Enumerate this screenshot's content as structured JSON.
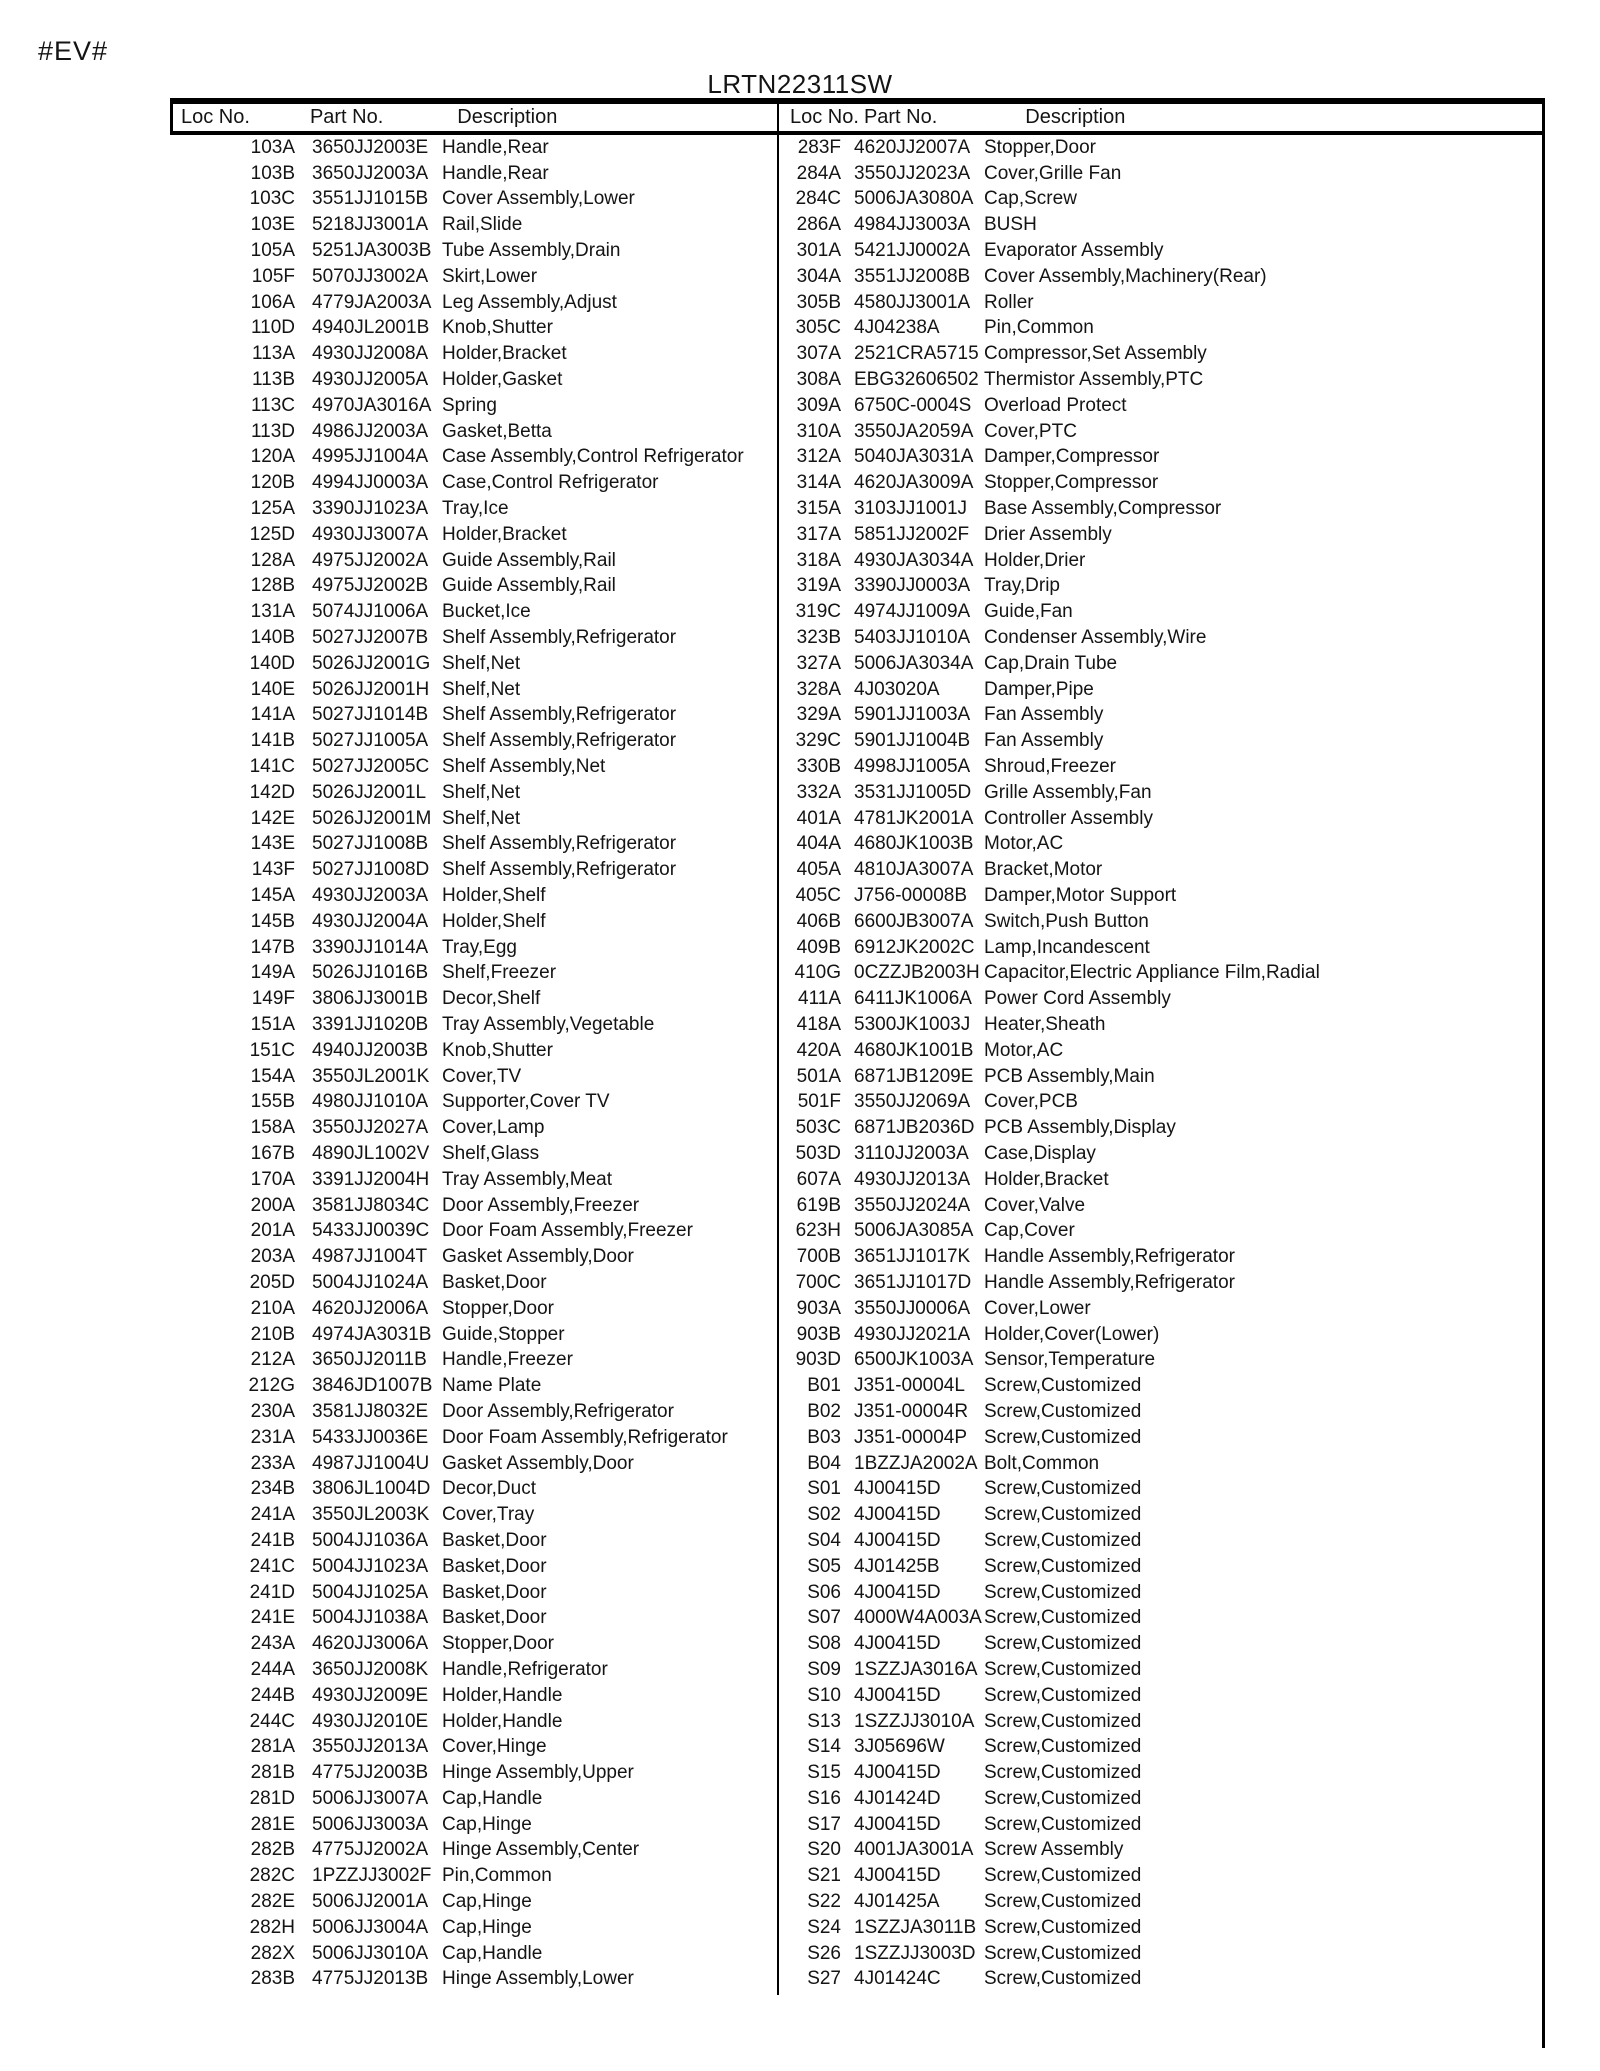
{
  "page": {
    "ev_marker": "#EV#",
    "title": "LRTN22311SW"
  },
  "table": {
    "headers": [
      "Loc No.",
      "Part No.",
      "Description"
    ],
    "left_rows": [
      [
        "103A",
        "3650JJ2003E",
        "Handle,Rear"
      ],
      [
        "103B",
        "3650JJ2003A",
        "Handle,Rear"
      ],
      [
        "103C",
        "3551JJ1015B",
        "Cover Assembly,Lower"
      ],
      [
        "103E",
        "5218JJ3001A",
        "Rail,Slide"
      ],
      [
        "105A",
        "5251JA3003B",
        "Tube Assembly,Drain"
      ],
      [
        "105F",
        "5070JJ3002A",
        "Skirt,Lower"
      ],
      [
        "106A",
        "4779JA2003A",
        "Leg Assembly,Adjust"
      ],
      [
        "110D",
        "4940JL2001B",
        "Knob,Shutter"
      ],
      [
        "113A",
        "4930JJ2008A",
        "Holder,Bracket"
      ],
      [
        "113B",
        "4930JJ2005A",
        "Holder,Gasket"
      ],
      [
        "113C",
        "4970JA3016A",
        "Spring"
      ],
      [
        "113D",
        "4986JJ2003A",
        "Gasket,Betta"
      ],
      [
        "120A",
        "4995JJ1004A",
        "Case Assembly,Control Refrigerator"
      ],
      [
        "120B",
        "4994JJ0003A",
        "Case,Control Refrigerator"
      ],
      [
        "125A",
        "3390JJ1023A",
        "Tray,Ice"
      ],
      [
        "125D",
        "4930JJ3007A",
        "Holder,Bracket"
      ],
      [
        "128A",
        "4975JJ2002A",
        "Guide Assembly,Rail"
      ],
      [
        "128B",
        "4975JJ2002B",
        "Guide Assembly,Rail"
      ],
      [
        "131A",
        "5074JJ1006A",
        "Bucket,Ice"
      ],
      [
        "140B",
        "5027JJ2007B",
        "Shelf Assembly,Refrigerator"
      ],
      [
        "140D",
        "5026JJ2001G",
        "Shelf,Net"
      ],
      [
        "140E",
        "5026JJ2001H",
        "Shelf,Net"
      ],
      [
        "141A",
        "5027JJ1014B",
        "Shelf Assembly,Refrigerator"
      ],
      [
        "141B",
        "5027JJ1005A",
        "Shelf Assembly,Refrigerator"
      ],
      [
        "141C",
        "5027JJ2005C",
        "Shelf Assembly,Net"
      ],
      [
        "142D",
        "5026JJ2001L",
        "Shelf,Net"
      ],
      [
        "142E",
        "5026JJ2001M",
        "Shelf,Net"
      ],
      [
        "143E",
        "5027JJ1008B",
        "Shelf Assembly,Refrigerator"
      ],
      [
        "143F",
        "5027JJ1008D",
        "Shelf Assembly,Refrigerator"
      ],
      [
        "145A",
        "4930JJ2003A",
        "Holder,Shelf"
      ],
      [
        "145B",
        "4930JJ2004A",
        "Holder,Shelf"
      ],
      [
        "147B",
        "3390JJ1014A",
        "Tray,Egg"
      ],
      [
        "149A",
        "5026JJ1016B",
        "Shelf,Freezer"
      ],
      [
        "149F",
        "3806JJ3001B",
        "Decor,Shelf"
      ],
      [
        "151A",
        "3391JJ1020B",
        "Tray Assembly,Vegetable"
      ],
      [
        "151C",
        "4940JJ2003B",
        "Knob,Shutter"
      ],
      [
        "154A",
        "3550JL2001K",
        "Cover,TV"
      ],
      [
        "155B",
        "4980JJ1010A",
        "Supporter,Cover TV"
      ],
      [
        "158A",
        "3550JJ2027A",
        "Cover,Lamp"
      ],
      [
        "167B",
        "4890JL1002V",
        "Shelf,Glass"
      ],
      [
        "170A",
        "3391JJ2004H",
        "Tray Assembly,Meat"
      ],
      [
        "200A",
        "3581JJ8034C",
        "Door Assembly,Freezer"
      ],
      [
        "201A",
        "5433JJ0039C",
        "Door Foam Assembly,Freezer"
      ],
      [
        "203A",
        "4987JJ1004T",
        "Gasket Assembly,Door"
      ],
      [
        "205D",
        "5004JJ1024A",
        "Basket,Door"
      ],
      [
        "210A",
        "4620JJ2006A",
        "Stopper,Door"
      ],
      [
        "210B",
        "4974JA3031B",
        "Guide,Stopper"
      ],
      [
        "212A",
        "3650JJ2011B",
        "Handle,Freezer"
      ],
      [
        "212G",
        "3846JD1007B",
        "Name Plate"
      ],
      [
        "230A",
        "3581JJ8032E",
        "Door Assembly,Refrigerator"
      ],
      [
        "231A",
        "5433JJ0036E",
        "Door Foam Assembly,Refrigerator"
      ],
      [
        "233A",
        "4987JJ1004U",
        "Gasket Assembly,Door"
      ],
      [
        "234B",
        "3806JL1004D",
        "Decor,Duct"
      ],
      [
        "241A",
        "3550JL2003K",
        "Cover,Tray"
      ],
      [
        "241B",
        "5004JJ1036A",
        "Basket,Door"
      ],
      [
        "241C",
        "5004JJ1023A",
        "Basket,Door"
      ],
      [
        "241D",
        "5004JJ1025A",
        "Basket,Door"
      ],
      [
        "241E",
        "5004JJ1038A",
        "Basket,Door"
      ],
      [
        "243A",
        "4620JJ3006A",
        "Stopper,Door"
      ],
      [
        "244A",
        "3650JJ2008K",
        "Handle,Refrigerator"
      ],
      [
        "244B",
        "4930JJ2009E",
        "Holder,Handle"
      ],
      [
        "244C",
        "4930JJ2010E",
        "Holder,Handle"
      ],
      [
        "281A",
        "3550JJ2013A",
        "Cover,Hinge"
      ],
      [
        "281B",
        "4775JJ2003B",
        "Hinge Assembly,Upper"
      ],
      [
        "281D",
        "5006JJ3007A",
        "Cap,Handle"
      ],
      [
        "281E",
        "5006JJ3003A",
        "Cap,Hinge"
      ],
      [
        "282B",
        "4775JJ2002A",
        "Hinge Assembly,Center"
      ],
      [
        "282C",
        "1PZZJJ3002F",
        "Pin,Common"
      ],
      [
        "282E",
        "5006JJ2001A",
        "Cap,Hinge"
      ],
      [
        "282H",
        "5006JJ3004A",
        "Cap,Hinge"
      ],
      [
        "282X",
        "5006JJ3010A",
        "Cap,Handle"
      ],
      [
        "283B",
        "4775JJ2013B",
        "Hinge Assembly,Lower"
      ]
    ],
    "right_rows": [
      [
        "283F",
        "4620JJ2007A",
        "Stopper,Door"
      ],
      [
        "284A",
        "3550JJ2023A",
        "Cover,Grille Fan"
      ],
      [
        "284C",
        "5006JA3080A",
        "Cap,Screw"
      ],
      [
        "286A",
        "4984JJ3003A",
        "BUSH"
      ],
      [
        "301A",
        "5421JJ0002A",
        "Evaporator Assembly"
      ],
      [
        "304A",
        "3551JJ2008B",
        "Cover Assembly,Machinery(Rear)"
      ],
      [
        "305B",
        "4580JJ3001A",
        "Roller"
      ],
      [
        "305C",
        "4J04238A",
        "Pin,Common"
      ],
      [
        "307A",
        "2521CRA5715",
        "Compressor,Set Assembly"
      ],
      [
        "308A",
        "EBG32606502",
        "Thermistor Assembly,PTC"
      ],
      [
        "309A",
        "6750C-0004S",
        "Overload Protect"
      ],
      [
        "310A",
        "3550JA2059A",
        "Cover,PTC"
      ],
      [
        "312A",
        "5040JA3031A",
        "Damper,Compressor"
      ],
      [
        "314A",
        "4620JA3009A",
        "Stopper,Compressor"
      ],
      [
        "315A",
        "3103JJ1001J",
        "Base Assembly,Compressor"
      ],
      [
        "317A",
        "5851JJ2002F",
        "Drier Assembly"
      ],
      [
        "318A",
        "4930JA3034A",
        "Holder,Drier"
      ],
      [
        "319A",
        "3390JJ0003A",
        "Tray,Drip"
      ],
      [
        "319C",
        "4974JJ1009A",
        "Guide,Fan"
      ],
      [
        "323B",
        "5403JJ1010A",
        "Condenser Assembly,Wire"
      ],
      [
        "327A",
        "5006JA3034A",
        "Cap,Drain Tube"
      ],
      [
        "328A",
        "4J03020A",
        "Damper,Pipe"
      ],
      [
        "329A",
        "5901JJ1003A",
        "Fan Assembly"
      ],
      [
        "329C",
        "5901JJ1004B",
        "Fan Assembly"
      ],
      [
        "330B",
        "4998JJ1005A",
        "Shroud,Freezer"
      ],
      [
        "332A",
        "3531JJ1005D",
        "Grille Assembly,Fan"
      ],
      [
        "401A",
        "4781JK2001A",
        "Controller Assembly"
      ],
      [
        "404A",
        "4680JK1003B",
        "Motor,AC"
      ],
      [
        "405A",
        "4810JA3007A",
        "Bracket,Motor"
      ],
      [
        "405C",
        "J756-00008B",
        "Damper,Motor Support"
      ],
      [
        "406B",
        "6600JB3007A",
        "Switch,Push Button"
      ],
      [
        "409B",
        "6912JK2002C",
        "Lamp,Incandescent"
      ],
      [
        "410G",
        "0CZZJB2003H",
        "Capacitor,Electric Appliance Film,Radial"
      ],
      [
        "411A",
        "6411JK1006A",
        "Power Cord Assembly"
      ],
      [
        "418A",
        "5300JK1003J",
        "Heater,Sheath"
      ],
      [
        "420A",
        "4680JK1001B",
        "Motor,AC"
      ],
      [
        "501A",
        "6871JB1209E",
        "PCB Assembly,Main"
      ],
      [
        "501F",
        "3550JJ2069A",
        "Cover,PCB"
      ],
      [
        "503C",
        "6871JB2036D",
        "PCB Assembly,Display"
      ],
      [
        "503D",
        "3110JJ2003A",
        "Case,Display"
      ],
      [
        "607A",
        "4930JJ2013A",
        "Holder,Bracket"
      ],
      [
        "619B",
        "3550JJ2024A",
        "Cover,Valve"
      ],
      [
        "623H",
        "5006JA3085A",
        "Cap,Cover"
      ],
      [
        "700B",
        "3651JJ1017K",
        "Handle Assembly,Refrigerator"
      ],
      [
        "700C",
        "3651JJ1017D",
        "Handle Assembly,Refrigerator"
      ],
      [
        "903A",
        "3550JJ0006A",
        "Cover,Lower"
      ],
      [
        "903B",
        "4930JJ2021A",
        "Holder,Cover(Lower)"
      ],
      [
        "903D",
        "6500JK1003A",
        "Sensor,Temperature"
      ],
      [
        "B01",
        "J351-00004L",
        "Screw,Customized"
      ],
      [
        "B02",
        "J351-00004R",
        "Screw,Customized"
      ],
      [
        "B03",
        "J351-00004P",
        "Screw,Customized"
      ],
      [
        "B04",
        "1BZZJA2002A",
        "Bolt,Common"
      ],
      [
        "S01",
        "4J00415D",
        "Screw,Customized"
      ],
      [
        "S02",
        "4J00415D",
        "Screw,Customized"
      ],
      [
        "S04",
        "4J00415D",
        "Screw,Customized"
      ],
      [
        "S05",
        "4J01425B",
        "Screw,Customized"
      ],
      [
        "S06",
        "4J00415D",
        "Screw,Customized"
      ],
      [
        "S07",
        "4000W4A003A",
        "Screw,Customized"
      ],
      [
        "S08",
        "4J00415D",
        "Screw,Customized"
      ],
      [
        "S09",
        "1SZZJA3016A",
        "Screw,Customized"
      ],
      [
        "S10",
        "4J00415D",
        "Screw,Customized"
      ],
      [
        "S13",
        "1SZZJJ3010A",
        "Screw,Customized"
      ],
      [
        "S14",
        "3J05696W",
        "Screw,Customized"
      ],
      [
        "S15",
        "4J00415D",
        "Screw,Customized"
      ],
      [
        "S16",
        "4J01424D",
        "Screw,Customized"
      ],
      [
        "S17",
        "4J00415D",
        "Screw,Customized"
      ],
      [
        "S20",
        "4001JA3001A",
        "Screw Assembly"
      ],
      [
        "S21",
        "4J00415D",
        "Screw,Customized"
      ],
      [
        "S22",
        "4J01425A",
        "Screw,Customized"
      ],
      [
        "S24",
        "1SZZJA3011B",
        "Screw,Customized"
      ],
      [
        "S26",
        "1SZZJJ3003D",
        "Screw,Customized"
      ],
      [
        "S27",
        "4J01424C",
        "Screw,Customized"
      ]
    ]
  }
}
